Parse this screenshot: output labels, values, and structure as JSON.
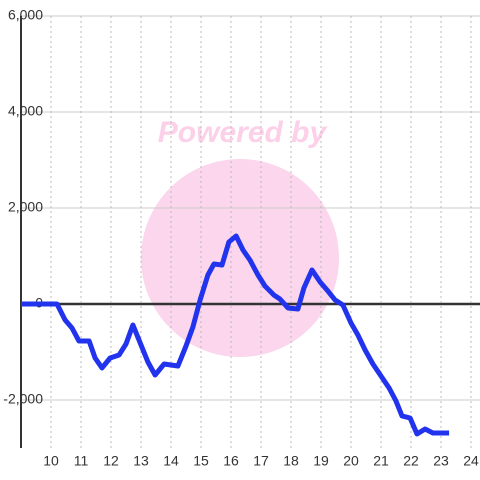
{
  "chart_data": {
    "type": "line",
    "watermark": "Powered by",
    "x": [
      9.0,
      10.2,
      10.47,
      10.7,
      10.93,
      11.27,
      11.47,
      11.7,
      11.97,
      12.27,
      12.5,
      12.73,
      13.0,
      13.23,
      13.47,
      13.77,
      14.23,
      14.5,
      14.73,
      14.97,
      15.23,
      15.43,
      15.7,
      15.93,
      16.17,
      16.4,
      16.63,
      16.9,
      17.13,
      17.43,
      17.63,
      17.9,
      18.23,
      18.43,
      18.7,
      18.97,
      19.2,
      19.47,
      19.73,
      20.0,
      20.23,
      20.47,
      20.73,
      21.0,
      21.27,
      21.5,
      21.7,
      21.97,
      22.2,
      22.47,
      22.73,
      23.27
    ],
    "series": [
      {
        "color": "#2233ee",
        "values": [
          0,
          0,
          -333,
          -500,
          -770,
          -770,
          -1125,
          -1333,
          -1125,
          -1062,
          -833,
          -437,
          -854,
          -1208,
          -1479,
          -1250,
          -1292,
          -875,
          -479,
          83,
          604,
          833,
          812,
          1292,
          1417,
          1125,
          917,
          604,
          375,
          187,
          104,
          -83,
          -104,
          333,
          708,
          458,
          292,
          83,
          -21,
          -396,
          -646,
          -958,
          -1250,
          -1500,
          -1750,
          -2021,
          -2333,
          -2375,
          -2708,
          -2604,
          -2687,
          -2687
        ]
      }
    ],
    "xlim": [
      9,
      24.3
    ],
    "xticks": [
      10,
      11,
      12,
      13,
      14,
      15,
      16,
      17,
      18,
      19,
      20,
      21,
      22,
      23,
      24
    ],
    "ylim": [
      -3000,
      6000
    ],
    "yticks": [
      {
        "value": -2000,
        "label": "-2,000"
      },
      0,
      {
        "value": 2000,
        "label": "2,000"
      },
      {
        "value": 4000,
        "label": "4,000"
      },
      {
        "value": 6000,
        "label": "6,000"
      }
    ],
    "grid": true
  }
}
